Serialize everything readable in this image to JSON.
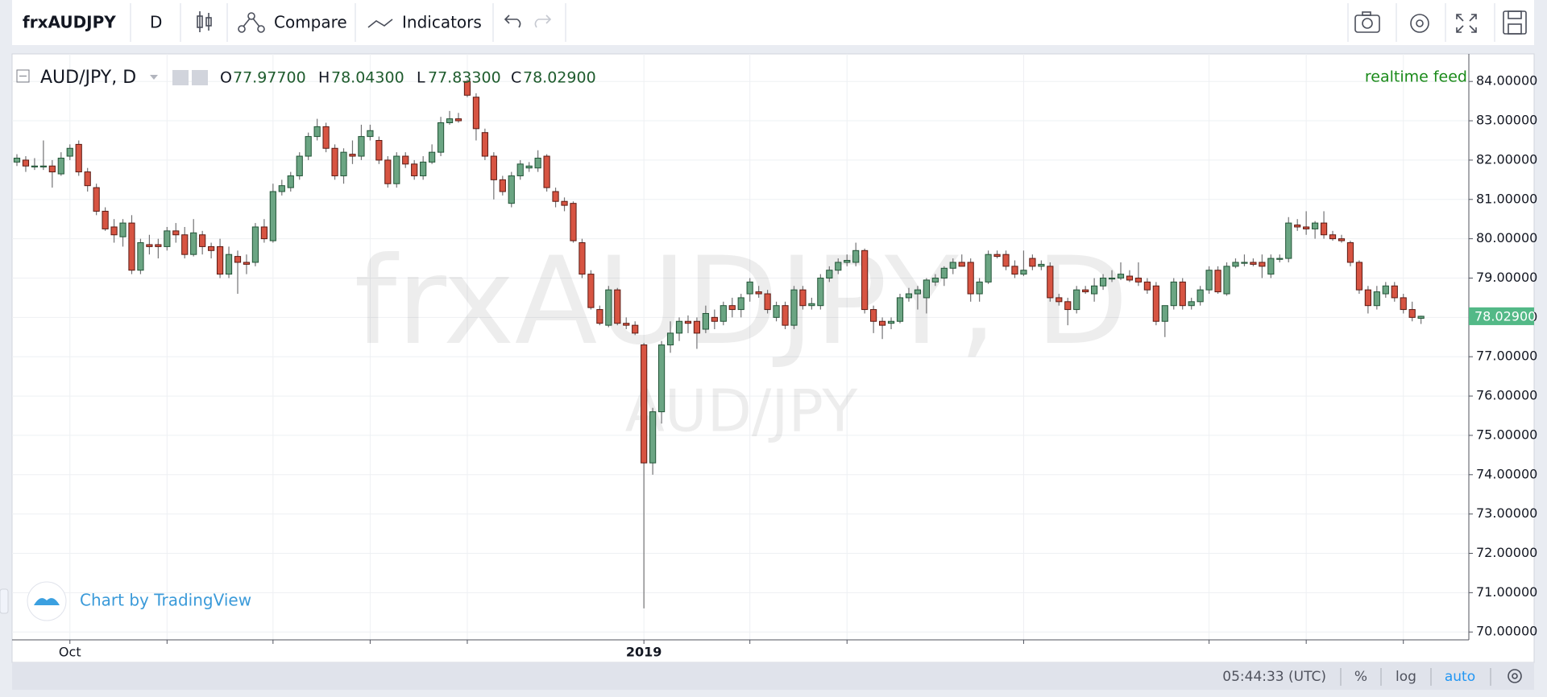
{
  "toolbar": {
    "symbol": "frxAUDJPY",
    "interval": "D",
    "compare": "Compare",
    "indicators": "Indicators"
  },
  "legend": {
    "symbol": "AUD/JPY, D",
    "open_label": "O",
    "open": "77.97700",
    "high_label": "H",
    "high": "78.04300",
    "low_label": "L",
    "low": "77.83300",
    "close_label": "C",
    "close": "78.02900"
  },
  "realtime": "realtime feed",
  "watermark": {
    "main": "frxAUDJPY, D",
    "sub": "AUD/JPY"
  },
  "attribution": "Chart by TradingView",
  "status": {
    "time": "05:44:33 (UTC)",
    "percent": "%",
    "log": "log",
    "auto": "auto"
  },
  "chart_data": {
    "type": "candlestick",
    "categories": [
      null,
      null,
      null,
      null,
      null,
      null,
      "Oct",
      null,
      null,
      null,
      null,
      null,
      null,
      null,
      null,
      null,
      null,
      null,
      null,
      null,
      null,
      null,
      null,
      null,
      null,
      null,
      null,
      null,
      null,
      null,
      null,
      null,
      null,
      null,
      null,
      null,
      null,
      null,
      null,
      null,
      null,
      null,
      null,
      null,
      null,
      null,
      null,
      null,
      null,
      null,
      null,
      null,
      null,
      null,
      null,
      null,
      null,
      null,
      null,
      null,
      null,
      null,
      null,
      null,
      null,
      null,
      null,
      null,
      null,
      null,
      null,
      "2019",
      null,
      null,
      null,
      null,
      null,
      null,
      null,
      null,
      null,
      null,
      null,
      null,
      null,
      null,
      null,
      null,
      null,
      null,
      null,
      null,
      null,
      null,
      null,
      null,
      null,
      null,
      null,
      null,
      null,
      null,
      null,
      null,
      null,
      null,
      null,
      null,
      null,
      null,
      null,
      null,
      null,
      null,
      null,
      null,
      null,
      null,
      null,
      null,
      null,
      null,
      null,
      null,
      null,
      null,
      null,
      null,
      null,
      null,
      null,
      null,
      null,
      null,
      null,
      null,
      null,
      null,
      null,
      null,
      null,
      null,
      null,
      null,
      null,
      null,
      null,
      null,
      null,
      null,
      null,
      null,
      null,
      null,
      null,
      null,
      null,
      null,
      null,
      null
    ],
    "open": [
      81.95,
      82.0,
      81.85,
      81.85,
      81.85,
      81.65,
      82.1,
      82.4,
      81.7,
      81.3,
      80.7,
      80.3,
      80.05,
      80.4,
      79.2,
      79.85,
      79.85,
      79.8,
      80.2,
      80.1,
      79.6,
      80.1,
      79.8,
      79.8,
      79.1,
      79.55,
      79.4,
      79.4,
      80.3,
      79.95,
      81.2,
      81.3,
      81.6,
      82.1,
      82.6,
      82.85,
      82.3,
      81.6,
      82.15,
      82.1,
      82.6,
      82.5,
      82.0,
      81.4,
      82.1,
      81.9,
      81.6,
      81.95,
      82.2,
      82.95,
      83.05,
      84.0,
      83.6,
      82.7,
      82.1,
      81.5,
      80.9,
      81.6,
      81.8,
      81.8,
      82.1,
      81.2,
      80.95,
      80.9,
      79.9,
      79.1,
      78.2,
      77.8,
      78.7,
      77.85,
      77.8,
      77.3,
      74.3,
      75.6,
      77.3,
      77.6,
      77.9,
      77.9,
      77.7,
      78.0,
      77.9,
      78.3,
      78.2,
      78.6,
      78.65,
      78.6,
      78.0,
      78.3,
      77.8,
      78.7,
      78.3,
      78.3,
      79.0,
      79.2,
      79.4,
      79.4,
      79.7,
      78.2,
      77.9,
      77.85,
      77.9,
      78.5,
      78.6,
      78.5,
      78.9,
      79.0,
      79.25,
      79.4,
      79.4,
      78.6,
      78.9,
      79.6,
      79.6,
      79.3,
      79.1,
      79.5,
      79.3,
      79.3,
      78.5,
      78.4,
      78.2,
      78.7,
      78.6,
      78.8,
      79.0,
      79.0,
      79.05,
      79.0,
      78.9,
      78.8,
      77.9,
      78.3,
      78.9,
      78.3,
      78.4,
      78.7,
      79.2,
      78.6,
      79.3,
      79.4,
      79.4,
      79.4,
      79.1,
      79.5,
      79.5,
      80.35,
      80.3,
      80.25,
      80.4,
      80.1,
      80.0,
      79.9,
      79.4,
      78.7,
      78.3,
      78.6,
      78.8,
      78.5,
      78.2,
      77.977
    ],
    "high": [
      82.15,
      82.1,
      82.05,
      82.5,
      82.0,
      82.2,
      82.4,
      82.5,
      81.8,
      81.4,
      80.8,
      80.5,
      80.5,
      80.6,
      80.0,
      80.1,
      80.0,
      80.3,
      80.4,
      80.3,
      80.5,
      80.2,
      79.9,
      80.0,
      79.8,
      79.7,
      79.6,
      80.4,
      80.5,
      81.4,
      81.5,
      81.7,
      82.2,
      82.7,
      83.05,
      82.95,
      82.4,
      82.3,
      82.5,
      82.9,
      82.9,
      82.6,
      82.1,
      82.2,
      82.2,
      82.0,
      82.1,
      82.4,
      83.1,
      83.25,
      83.2,
      84.05,
      83.7,
      82.8,
      82.2,
      81.6,
      81.7,
      82.0,
      81.95,
      82.25,
      82.15,
      81.3,
      81.05,
      80.95,
      80.0,
      79.2,
      78.3,
      78.8,
      78.75,
      78.0,
      77.9,
      77.35,
      75.7,
      77.4,
      77.9,
      78.0,
      78.05,
      78.0,
      78.3,
      78.2,
      78.4,
      78.5,
      78.6,
      79.0,
      78.8,
      78.7,
      78.4,
      78.4,
      78.8,
      78.8,
      78.5,
      79.1,
      79.3,
      79.5,
      79.6,
      79.9,
      79.75,
      78.3,
      78.0,
      78.0,
      78.6,
      78.75,
      78.8,
      79.0,
      79.1,
      79.3,
      79.5,
      79.6,
      79.5,
      79.0,
      79.7,
      79.7,
      79.7,
      79.45,
      79.7,
      79.6,
      79.45,
      79.4,
      78.6,
      78.5,
      78.8,
      78.8,
      79.0,
      79.1,
      79.2,
      79.4,
      79.2,
      79.4,
      79.0,
      78.9,
      78.3,
      79.0,
      79.0,
      78.5,
      78.8,
      79.3,
      79.3,
      79.4,
      79.5,
      79.6,
      79.5,
      79.6,
      79.6,
      79.6,
      80.55,
      80.5,
      80.7,
      80.45,
      80.7,
      80.2,
      80.1,
      79.95,
      79.45,
      78.8,
      78.8,
      78.9,
      78.9,
      78.6,
      78.4,
      78.043
    ],
    "low": [
      81.85,
      81.7,
      81.75,
      81.75,
      81.3,
      81.6,
      82.0,
      81.6,
      81.2,
      80.6,
      80.2,
      79.9,
      79.8,
      79.1,
      79.1,
      79.6,
      79.5,
      79.7,
      79.9,
      79.5,
      79.55,
      79.6,
      79.5,
      79.0,
      79.0,
      78.6,
      79.1,
      79.3,
      79.9,
      79.9,
      81.1,
      81.2,
      81.5,
      82.0,
      82.5,
      82.2,
      81.5,
      81.4,
      81.9,
      82.0,
      82.5,
      81.9,
      81.3,
      81.3,
      81.8,
      81.5,
      81.5,
      81.9,
      82.1,
      82.9,
      82.95,
      83.6,
      82.5,
      82.0,
      81.0,
      81.1,
      80.8,
      81.5,
      81.7,
      81.7,
      81.2,
      80.8,
      80.7,
      79.9,
      79.0,
      78.2,
      77.8,
      77.75,
      77.8,
      77.7,
      77.55,
      70.6,
      74.0,
      75.3,
      77.1,
      77.4,
      77.6,
      77.2,
      77.6,
      77.7,
      77.8,
      78.0,
      78.0,
      78.4,
      78.5,
      78.1,
      77.9,
      77.7,
      77.7,
      78.2,
      78.2,
      78.2,
      78.9,
      79.1,
      79.3,
      79.3,
      78.1,
      77.6,
      77.45,
      77.7,
      77.85,
      78.4,
      78.2,
      78.1,
      78.8,
      78.8,
      79.1,
      79.3,
      78.4,
      78.4,
      78.85,
      79.5,
      79.2,
      79.0,
      79.05,
      79.2,
      79.2,
      78.4,
      78.3,
      77.8,
      78.1,
      78.6,
      78.4,
      78.7,
      78.9,
      78.95,
      78.9,
      78.8,
      78.6,
      77.8,
      77.5,
      78.2,
      78.2,
      78.2,
      78.3,
      78.6,
      78.6,
      78.55,
      79.25,
      79.3,
      79.3,
      79.0,
      79.0,
      79.4,
      79.4,
      80.2,
      80.1,
      80.0,
      80.0,
      79.95,
      79.9,
      79.3,
      78.6,
      78.1,
      78.2,
      78.5,
      78.4,
      78.1,
      77.9,
      77.833
    ],
    "close": [
      82.05,
      81.85,
      81.85,
      81.85,
      81.7,
      82.05,
      82.3,
      81.7,
      81.35,
      80.7,
      80.25,
      80.1,
      80.4,
      79.2,
      79.9,
      79.8,
      79.8,
      80.2,
      80.1,
      79.6,
      80.15,
      79.8,
      79.7,
      79.1,
      79.6,
      79.4,
      79.35,
      80.3,
      80.0,
      81.2,
      81.35,
      81.6,
      82.1,
      82.6,
      82.85,
      82.3,
      81.6,
      82.2,
      82.1,
      82.6,
      82.75,
      82.0,
      81.4,
      82.1,
      81.9,
      81.6,
      81.95,
      82.2,
      82.95,
      83.05,
      83.0,
      83.65,
      82.8,
      82.1,
      81.5,
      81.2,
      81.6,
      81.9,
      81.85,
      82.05,
      81.3,
      80.95,
      80.85,
      79.95,
      79.1,
      78.25,
      77.85,
      78.7,
      77.85,
      77.8,
      77.6,
      74.3,
      75.6,
      77.3,
      77.6,
      77.9,
      77.85,
      77.6,
      78.1,
      77.9,
      78.3,
      78.2,
      78.5,
      78.9,
      78.6,
      78.2,
      78.3,
      77.8,
      78.7,
      78.3,
      78.35,
      79.0,
      79.2,
      79.4,
      79.45,
      79.7,
      78.2,
      77.9,
      77.8,
      77.9,
      78.5,
      78.6,
      78.7,
      78.95,
      79.0,
      79.25,
      79.4,
      79.3,
      78.6,
      78.9,
      79.6,
      79.55,
      79.3,
      79.1,
      79.2,
      79.3,
      79.35,
      78.5,
      78.4,
      78.2,
      78.7,
      78.65,
      78.8,
      79.0,
      79.0,
      79.1,
      78.95,
      78.9,
      78.7,
      77.9,
      78.3,
      78.9,
      78.3,
      78.4,
      78.7,
      79.2,
      78.65,
      79.3,
      79.4,
      79.4,
      79.35,
      79.3,
      79.5,
      79.5,
      80.4,
      80.3,
      80.25,
      80.4,
      80.1,
      80.0,
      79.95,
      79.4,
      78.7,
      78.3,
      78.65,
      78.8,
      78.5,
      78.2,
      78.0,
      78.029
    ],
    "up_color": "#6ba583",
    "down_color": "#d75442",
    "up_border": "#225437",
    "down_border": "#5b1a13",
    "wick_color": "#737375",
    "last_label": "78.02900",
    "last_color": "#53b987",
    "ylim": [
      69.8,
      84.7
    ],
    "yticks": [
      {
        "value": 70,
        "label": "70.00000"
      },
      {
        "value": 71,
        "label": "71.00000"
      },
      {
        "value": 72,
        "label": "72.00000"
      },
      {
        "value": 73,
        "label": "73.00000"
      },
      {
        "value": 74,
        "label": "74.00000"
      },
      {
        "value": 75,
        "label": "75.00000"
      },
      {
        "value": 76,
        "label": "76.00000"
      },
      {
        "value": 77,
        "label": "77.00000"
      },
      {
        "value": 78,
        "label": "78.00000"
      },
      {
        "value": 79,
        "label": "79.00000"
      },
      {
        "value": 80,
        "label": "80.00000"
      },
      {
        "value": 81,
        "label": "81.00000"
      },
      {
        "value": 82,
        "label": "82.00000"
      },
      {
        "value": 83,
        "label": "83.00000"
      },
      {
        "value": 84,
        "label": "84.00000"
      }
    ],
    "grid": true
  }
}
